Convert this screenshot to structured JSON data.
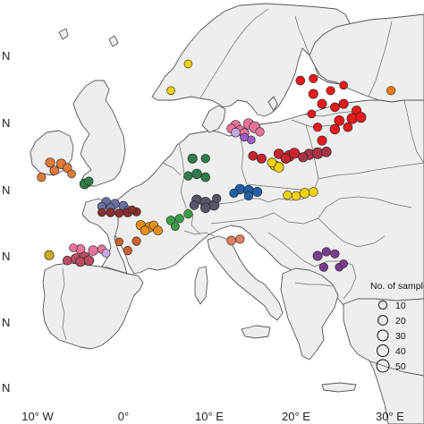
{
  "chart_data": {
    "type": "scatter",
    "title": "",
    "x_ticks": [
      "10° W",
      "0°",
      "10° E",
      "20° E",
      "30° E"
    ],
    "y_ticks": [
      "N",
      "N",
      "N",
      "N",
      "N",
      "N"
    ],
    "xlim": [
      -11,
      32
    ],
    "ylim": [
      35.5,
      71.5
    ],
    "legend": {
      "title": "No. of samples",
      "placement": "right",
      "items": [
        "10",
        "20",
        "30",
        "40",
        "50"
      ],
      "sizes": [
        10,
        20,
        30,
        40,
        50
      ]
    },
    "groups": [
      {
        "color": "#e41a1c",
        "points": [
          [
            22.0,
            64.5,
            8
          ],
          [
            24.0,
            65.0,
            6
          ],
          [
            25.5,
            65.8,
            5
          ],
          [
            23.0,
            63.0,
            8
          ],
          [
            24.5,
            62.5,
            7
          ],
          [
            25.5,
            63.0,
            8
          ],
          [
            27.0,
            62.0,
            8
          ],
          [
            25.0,
            60.5,
            10
          ],
          [
            26.5,
            60.8,
            12
          ],
          [
            27.5,
            61.0,
            11
          ],
          [
            24.5,
            59.2,
            9
          ],
          [
            26.0,
            59.5,
            7
          ],
          [
            22.5,
            59.5,
            6
          ],
          [
            21.8,
            61.5,
            5
          ],
          [
            23.0,
            57.5,
            8
          ],
          [
            20.5,
            66.5,
            7
          ],
          [
            22.0,
            66.8,
            6
          ]
        ]
      },
      {
        "color": "#c6242f",
        "points": [
          [
            18.0,
            55.5,
            10
          ],
          [
            19.2,
            55.2,
            14
          ],
          [
            19.8,
            55.6,
            12
          ],
          [
            18.8,
            54.8,
            9
          ],
          [
            16.0,
            54.8,
            8
          ],
          [
            15.0,
            55.2,
            7
          ],
          [
            21.5,
            55.5,
            8
          ]
        ]
      },
      {
        "color": "#a83248",
        "points": [
          [
            21.5,
            55.4,
            12
          ],
          [
            22.5,
            55.6,
            14
          ],
          [
            23.5,
            55.8,
            10
          ],
          [
            20.8,
            55.0,
            8
          ]
        ]
      },
      {
        "color": "#e8749a",
        "points": [
          [
            13.0,
            59.8,
            10
          ],
          [
            14.5,
            60.0,
            12
          ],
          [
            15.2,
            59.5,
            14
          ],
          [
            13.5,
            59.0,
            9
          ],
          [
            14.0,
            58.6,
            8
          ],
          [
            15.8,
            58.8,
            6
          ],
          [
            12.5,
            59.3,
            7
          ]
        ]
      },
      {
        "color": "#c9a6e0",
        "points": [
          [
            13.0,
            58.7,
            7
          ]
        ]
      },
      {
        "color": "#9a5ec9",
        "points": [
          [
            14.8,
            57.6,
            5
          ],
          [
            14.0,
            58.0,
            5
          ]
        ]
      },
      {
        "color": "#f2d10a",
        "points": [
          [
            7.5,
            69.0,
            5
          ],
          [
            5.5,
            65.0,
            5
          ],
          [
            17.5,
            53.8,
            9
          ],
          [
            18.0,
            53.5,
            10
          ],
          [
            17.2,
            54.2,
            7
          ],
          [
            20.0,
            49.2,
            7
          ],
          [
            21.0,
            49.6,
            9
          ],
          [
            22.0,
            49.8,
            7
          ],
          [
            19.0,
            49.3,
            6
          ]
        ]
      },
      {
        "color": "#f07a1a",
        "points": [
          [
            31.0,
            65.0,
            6
          ]
        ]
      },
      {
        "color": "#e07a3a",
        "points": [
          [
            -8.5,
            54.2,
            8
          ],
          [
            -7.2,
            54.0,
            9
          ],
          [
            -6.5,
            53.4,
            7
          ],
          [
            -8.0,
            53.0,
            7
          ],
          [
            -9.5,
            52.0,
            6
          ],
          [
            -6.0,
            52.5,
            5
          ]
        ]
      },
      {
        "color": "#2e7d4a",
        "points": [
          [
            8.0,
            54.8,
            8
          ],
          [
            9.5,
            54.8,
            6
          ],
          [
            8.5,
            52.5,
            9
          ],
          [
            9.5,
            52.0,
            7
          ],
          [
            7.5,
            52.2,
            6
          ],
          [
            -4.5,
            51.0,
            10
          ],
          [
            -4.0,
            51.4,
            6
          ]
        ]
      },
      {
        "color": "#3a9d45",
        "points": [
          [
            5.5,
            45.5,
            7
          ],
          [
            6.5,
            45.8,
            6
          ],
          [
            7.5,
            46.5,
            6
          ],
          [
            6.0,
            44.6,
            5
          ]
        ]
      },
      {
        "color": "#1f5fa8",
        "points": [
          [
            13.5,
            50.2,
            9
          ],
          [
            14.5,
            50.0,
            11
          ],
          [
            15.5,
            49.8,
            8
          ],
          [
            12.8,
            49.6,
            6
          ],
          [
            14.5,
            49.2,
            6
          ]
        ]
      },
      {
        "color": "#555566",
        "points": [
          [
            8.5,
            48.6,
            10
          ],
          [
            9.5,
            48.2,
            13
          ],
          [
            10.5,
            47.8,
            11
          ],
          [
            9.5,
            47.4,
            9
          ],
          [
            8.2,
            47.8,
            7
          ],
          [
            10.8,
            48.8,
            6
          ]
        ]
      },
      {
        "color": "#6a6fa3",
        "points": [
          [
            -2.0,
            48.3,
            7
          ],
          [
            -1.0,
            48.0,
            8
          ],
          [
            0.0,
            47.7,
            7
          ],
          [
            -2.5,
            47.6,
            6
          ],
          [
            -1.5,
            47.4,
            6
          ],
          [
            0.5,
            47.0,
            6
          ]
        ]
      },
      {
        "color": "#8a3030",
        "points": [
          [
            -1.5,
            46.7,
            6
          ],
          [
            -0.5,
            46.6,
            6
          ],
          [
            0.5,
            46.7,
            7
          ],
          [
            1.5,
            46.8,
            6
          ],
          [
            -2.5,
            46.7,
            5
          ],
          [
            1.0,
            47.1,
            5
          ]
        ]
      },
      {
        "color": "#e8901a",
        "points": [
          [
            2.0,
            44.8,
            8
          ],
          [
            3.0,
            44.5,
            10
          ],
          [
            2.5,
            44.0,
            7
          ],
          [
            3.5,
            44.8,
            6
          ],
          [
            4.0,
            44.0,
            7
          ]
        ]
      },
      {
        "color": "#e08060",
        "points": [
          [
            12.5,
            42.5,
            7
          ],
          [
            13.5,
            42.7,
            6
          ]
        ]
      },
      {
        "color": "#e8749a",
        "points": [
          [
            -5.0,
            41.2,
            8
          ],
          [
            -3.5,
            41.0,
            9
          ],
          [
            -2.5,
            41.2,
            6
          ],
          [
            -5.8,
            41.4,
            5
          ]
        ]
      },
      {
        "color": "#c9a6e0",
        "points": [
          [
            -2.0,
            40.6,
            5
          ]
        ]
      },
      {
        "color": "#b94c62",
        "points": [
          [
            -6.5,
            39.5,
            7
          ],
          [
            -5.5,
            39.8,
            10
          ],
          [
            -4.5,
            40.0,
            12
          ],
          [
            -4.0,
            39.5,
            9
          ],
          [
            -5.0,
            39.3,
            8
          ]
        ]
      },
      {
        "color": "#ccaa22",
        "points": [
          [
            -8.6,
            40.3,
            8
          ]
        ]
      },
      {
        "color": "#c9622a",
        "points": [
          [
            0.5,
            41.0,
            6
          ],
          [
            1.5,
            42.4,
            6
          ],
          [
            -0.5,
            42.3,
            5
          ]
        ]
      },
      {
        "color": "#7a3c8f",
        "points": [
          [
            23.5,
            40.8,
            6
          ],
          [
            22.5,
            40.2,
            8
          ],
          [
            24.5,
            40.5,
            6
          ],
          [
            25.0,
            38.5,
            5
          ],
          [
            23.2,
            38.5,
            6
          ],
          [
            25.5,
            39.0,
            5
          ]
        ]
      }
    ]
  }
}
